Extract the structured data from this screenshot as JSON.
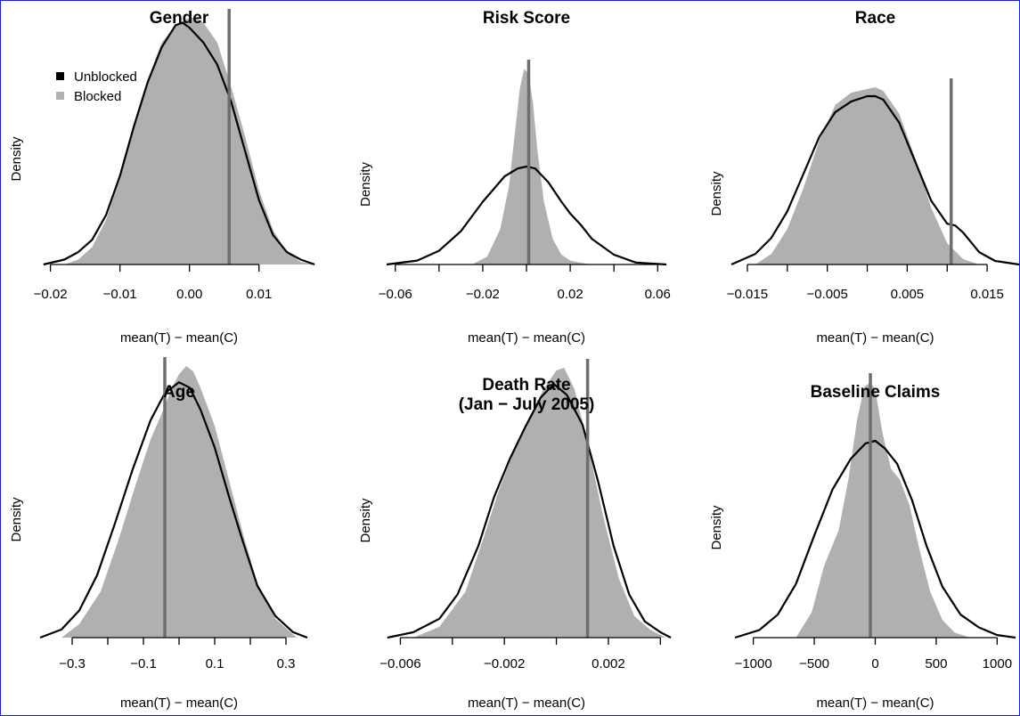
{
  "figure": {
    "background": "#ffffff",
    "border_color": "#1a1aff"
  },
  "legend": {
    "entries": [
      {
        "label": "Unblocked",
        "color": "#000000"
      },
      {
        "label": "Blocked",
        "color": "#b0b0b0"
      }
    ]
  },
  "chart_data": [
    {
      "type": "area",
      "title": "Gender",
      "xlabel": "mean(T) − mean(C)",
      "ylabel": "Density",
      "xlim": [
        -0.022,
        0.019
      ],
      "xticks": [
        -0.02,
        -0.01,
        0.0,
        0.01
      ],
      "xtick_labels": [
        "−0.02",
        "−0.01",
        "0.00",
        "0.01"
      ],
      "vline": 0.0057,
      "blocked": {
        "x": [
          -0.018,
          -0.016,
          -0.014,
          -0.012,
          -0.01,
          -0.008,
          -0.006,
          -0.004,
          -0.002,
          0.0,
          0.001,
          0.002,
          0.004,
          0.006,
          0.008,
          0.01,
          0.012,
          0.014,
          0.016,
          0.018
        ],
        "y": [
          0.0,
          0.02,
          0.07,
          0.18,
          0.35,
          0.56,
          0.75,
          0.9,
          0.97,
          1.0,
          1.0,
          0.98,
          0.9,
          0.72,
          0.52,
          0.3,
          0.14,
          0.05,
          0.01,
          0.0
        ]
      },
      "unblocked": {
        "x": [
          -0.021,
          -0.018,
          -0.016,
          -0.014,
          -0.012,
          -0.01,
          -0.008,
          -0.006,
          -0.004,
          -0.002,
          -0.001,
          0.0,
          0.002,
          0.004,
          0.006,
          0.008,
          0.01,
          0.012,
          0.014,
          0.016,
          0.018
        ],
        "y": [
          0.0,
          0.02,
          0.05,
          0.1,
          0.2,
          0.36,
          0.56,
          0.74,
          0.88,
          0.97,
          0.98,
          0.96,
          0.9,
          0.81,
          0.66,
          0.46,
          0.26,
          0.12,
          0.05,
          0.02,
          0.0
        ]
      },
      "legend": true
    },
    {
      "type": "area",
      "title": "Risk Score",
      "xlabel": "mean(T) − mean(C)",
      "ylabel": "Density",
      "xlim": [
        -0.066,
        0.066
      ],
      "xticks": [
        -0.06,
        -0.04,
        -0.02,
        0.0,
        0.02,
        0.04,
        0.06
      ],
      "xtick_labels": [
        "−0.06",
        "",
        "−0.02",
        "",
        "0.02",
        "",
        "0.06"
      ],
      "vline": 0.001,
      "blocked": {
        "x": [
          -0.025,
          -0.018,
          -0.012,
          -0.008,
          -0.005,
          -0.003,
          -0.001,
          0.001,
          0.003,
          0.005,
          0.008,
          0.012,
          0.016,
          0.02,
          0.024,
          0.03
        ],
        "y": [
          0.0,
          0.04,
          0.18,
          0.4,
          0.7,
          0.9,
          1.0,
          0.97,
          0.82,
          0.58,
          0.32,
          0.13,
          0.05,
          0.02,
          0.01,
          0.0
        ]
      },
      "unblocked": {
        "x": [
          -0.064,
          -0.05,
          -0.04,
          -0.03,
          -0.02,
          -0.01,
          -0.004,
          0.0,
          0.004,
          0.01,
          0.016,
          0.02,
          0.025,
          0.03,
          0.04,
          0.05,
          0.064
        ],
        "y": [
          0.0,
          0.02,
          0.07,
          0.17,
          0.32,
          0.45,
          0.49,
          0.5,
          0.49,
          0.42,
          0.32,
          0.26,
          0.2,
          0.13,
          0.05,
          0.01,
          0.0
        ]
      }
    },
    {
      "type": "area",
      "title": "Race",
      "xlabel": "mean(T) − mean(C)",
      "ylabel": "Density",
      "xlim": [
        -0.017,
        0.019
      ],
      "xticks": [
        -0.015,
        -0.01,
        -0.005,
        0.0,
        0.005,
        0.01,
        0.015
      ],
      "xtick_labels": [
        "−0.015",
        "",
        "−0.005",
        "",
        "0.005",
        "",
        "0.015"
      ],
      "vline": 0.0105,
      "blocked": {
        "x": [
          -0.014,
          -0.012,
          -0.01,
          -0.008,
          -0.006,
          -0.004,
          -0.002,
          0.0,
          0.001,
          0.002,
          0.004,
          0.006,
          0.008,
          0.01,
          0.012,
          0.014
        ],
        "y": [
          0.0,
          0.06,
          0.2,
          0.43,
          0.7,
          0.9,
          0.97,
          0.99,
          1.0,
          0.98,
          0.85,
          0.6,
          0.32,
          0.12,
          0.03,
          0.0
        ]
      },
      "unblocked": {
        "x": [
          -0.017,
          -0.014,
          -0.012,
          -0.01,
          -0.008,
          -0.006,
          -0.004,
          -0.002,
          0.0,
          0.001,
          0.002,
          0.004,
          0.006,
          0.008,
          0.01,
          0.011,
          0.012,
          0.014,
          0.016,
          0.019
        ],
        "y": [
          0.0,
          0.06,
          0.15,
          0.3,
          0.51,
          0.72,
          0.86,
          0.92,
          0.95,
          0.95,
          0.93,
          0.8,
          0.58,
          0.36,
          0.23,
          0.22,
          0.18,
          0.07,
          0.02,
          0.0
        ]
      }
    },
    {
      "type": "area",
      "title": "Age",
      "xlabel": "mean(T) − mean(C)",
      "ylabel": "Density",
      "xlim": [
        -0.4,
        0.4
      ],
      "xticks": [
        -0.3,
        -0.2,
        -0.1,
        0.0,
        0.1,
        0.2,
        0.3
      ],
      "xtick_labels": [
        "−0.3",
        "",
        "−0.1",
        "",
        "0.1",
        "",
        "0.3"
      ],
      "vline": -0.04,
      "blocked": {
        "x": [
          -0.33,
          -0.28,
          -0.22,
          -0.17,
          -0.12,
          -0.08,
          -0.05,
          -0.02,
          0.0,
          0.02,
          0.04,
          0.06,
          0.1,
          0.14,
          0.18,
          0.22,
          0.27,
          0.33
        ],
        "y": [
          0.0,
          0.05,
          0.17,
          0.36,
          0.57,
          0.73,
          0.82,
          0.92,
          0.97,
          1.0,
          0.98,
          0.92,
          0.78,
          0.58,
          0.38,
          0.2,
          0.07,
          0.0
        ]
      },
      "unblocked": {
        "x": [
          -0.39,
          -0.33,
          -0.28,
          -0.23,
          -0.18,
          -0.13,
          -0.08,
          -0.04,
          0.0,
          0.03,
          0.06,
          0.1,
          0.14,
          0.18,
          0.22,
          0.27,
          0.32,
          0.36
        ],
        "y": [
          0.0,
          0.03,
          0.1,
          0.23,
          0.42,
          0.62,
          0.8,
          0.9,
          0.94,
          0.92,
          0.84,
          0.7,
          0.52,
          0.35,
          0.19,
          0.08,
          0.02,
          0.0
        ]
      }
    },
    {
      "type": "area",
      "title": "Death Rate\n(Jan − July 2005)",
      "title_lines": [
        "Death Rate",
        "(Jan − July 2005)"
      ],
      "xlabel": "mean(T) − mean(C)",
      "ylabel": "Density",
      "xlim": [
        -0.0067,
        0.0044
      ],
      "xticks": [
        -0.006,
        -0.004,
        -0.002,
        0.0,
        0.002,
        0.004
      ],
      "xtick_labels": [
        "−0.006",
        "",
        "−0.002",
        "",
        "0.002",
        ""
      ],
      "vline": 0.0012,
      "blocked": {
        "x": [
          -0.0055,
          -0.0045,
          -0.0035,
          -0.0028,
          -0.0022,
          -0.0016,
          -0.001,
          -0.0005,
          0.0,
          0.0003,
          0.0007,
          0.0012,
          0.0018,
          0.0024,
          0.003,
          0.0036,
          0.0042
        ],
        "y": [
          0.0,
          0.04,
          0.17,
          0.37,
          0.55,
          0.7,
          0.82,
          0.92,
          0.99,
          1.0,
          0.92,
          0.72,
          0.45,
          0.22,
          0.08,
          0.03,
          0.0
        ]
      },
      "unblocked": {
        "x": [
          -0.0065,
          -0.0055,
          -0.0045,
          -0.0038,
          -0.003,
          -0.0024,
          -0.0018,
          -0.0012,
          -0.0006,
          -0.0001,
          0.0004,
          0.001,
          0.0016,
          0.0022,
          0.0028,
          0.0034,
          0.004,
          0.0044
        ],
        "y": [
          0.0,
          0.02,
          0.07,
          0.16,
          0.34,
          0.52,
          0.66,
          0.78,
          0.89,
          0.94,
          0.9,
          0.79,
          0.58,
          0.34,
          0.16,
          0.06,
          0.02,
          0.0
        ]
      }
    },
    {
      "type": "area",
      "title": "Baseline Claims",
      "xlabel": "mean(T) − mean(C)",
      "ylabel": "Density",
      "xlim": [
        -1180,
        1180
      ],
      "xticks": [
        -1000,
        -500,
        0,
        500,
        1000
      ],
      "xtick_labels": [
        "−1000",
        "−500",
        "0",
        "500",
        "1000"
      ],
      "vline": -40,
      "blocked": {
        "x": [
          -650,
          -520,
          -420,
          -360,
          -300,
          -220,
          -150,
          -90,
          -40,
          0,
          60,
          130,
          200,
          280,
          360,
          450,
          550,
          650,
          780
        ],
        "y": [
          0.0,
          0.1,
          0.28,
          0.35,
          0.42,
          0.62,
          0.85,
          0.98,
          1.0,
          0.97,
          0.8,
          0.66,
          0.62,
          0.52,
          0.35,
          0.18,
          0.07,
          0.02,
          0.0
        ]
      },
      "unblocked": {
        "x": [
          -1150,
          -950,
          -800,
          -650,
          -500,
          -350,
          -200,
          -80,
          0,
          80,
          180,
          300,
          420,
          550,
          700,
          850,
          1000,
          1150
        ],
        "y": [
          0.0,
          0.03,
          0.09,
          0.21,
          0.4,
          0.58,
          0.7,
          0.76,
          0.77,
          0.74,
          0.68,
          0.54,
          0.36,
          0.2,
          0.09,
          0.04,
          0.01,
          0.0
        ]
      }
    }
  ]
}
